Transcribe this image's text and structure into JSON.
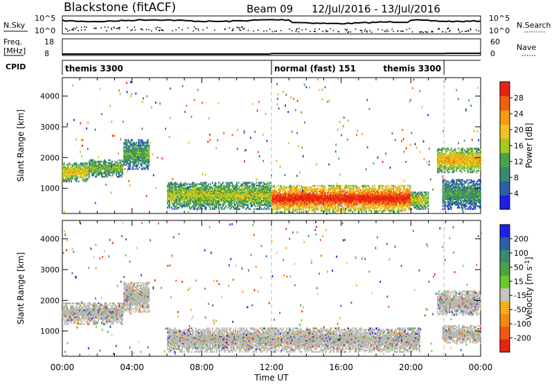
{
  "header": {
    "station": "Blackstone (fitACF)",
    "beam": "Beam 09",
    "date_range": "12/Jul/2016 - 13/Jul/2016"
  },
  "noise_panel": {
    "left_label": "N.Sky",
    "right_label": "N.Search",
    "left_ticks": [
      "10^5",
      "10^0"
    ],
    "right_ticks": [
      "10^5",
      "10^0"
    ]
  },
  "freq_panel": {
    "left_label_line1": "Freq.",
    "left_label_line2": "[MHz]",
    "right_label": "Nave",
    "left_ticks": [
      "18",
      "8"
    ],
    "right_ticks": [
      "60",
      "0"
    ],
    "freq_series": [
      {
        "t": 0,
        "f": 8.0
      },
      {
        "t": 11.9,
        "f": 8.0
      },
      {
        "t": 12.0,
        "f": 8.3
      },
      {
        "t": 21.9,
        "f": 8.3
      },
      {
        "t": 22.0,
        "f": 8.5
      },
      {
        "t": 24.0,
        "f": 8.5
      }
    ]
  },
  "cpid_panel": {
    "label": "CPID",
    "segments": [
      {
        "name": "themis 3300",
        "start": 0,
        "end": 12
      },
      {
        "name": "normal (fast) 151",
        "start": 12,
        "end": 21.9
      },
      {
        "name": "themis 3300",
        "start": 21.9,
        "end": 24
      }
    ]
  },
  "colors": {
    "power": [
      "#1f1fe8",
      "#2c5fa8",
      "#3a8a6f",
      "#4ba24a",
      "#a8c81e",
      "#f0c21a",
      "#f59a12",
      "#f06010",
      "#e82410"
    ],
    "velocity": [
      "#1f1fe8",
      "#2c5fa8",
      "#3a8a6f",
      "#4ba24a",
      "#6ec82a",
      "#c4c4c0",
      "#f5b018",
      "#f58a12",
      "#f05a10",
      "#e82410"
    ],
    "ground_scatter": "#b8b8b4"
  },
  "chart_data": [
    {
      "type": "heatmap",
      "name": "power",
      "xlabel": "Time UT",
      "ylabel": "Slant Range [km]",
      "xlim": [
        0,
        24
      ],
      "ylim": [
        180,
        4600
      ],
      "xticks": [
        "00:00",
        "04:00",
        "08:00",
        "12:00",
        "16:00",
        "20:00",
        "00:00"
      ],
      "yticks": [
        1000,
        2000,
        3000,
        4000
      ],
      "colorbar": {
        "label": "Power [dB]",
        "ticks": [
          4,
          8,
          12,
          16,
          20,
          24,
          28
        ],
        "range": [
          0,
          30
        ]
      },
      "bands": [
        {
          "t0": 0.0,
          "t1": 1.5,
          "r0": 1200,
          "r1": 1850,
          "level": 0.55
        },
        {
          "t0": 1.5,
          "t1": 3.5,
          "r0": 1350,
          "r1": 1950,
          "level": 0.4
        },
        {
          "t0": 3.5,
          "t1": 5.0,
          "r0": 1600,
          "r1": 2600,
          "level": 0.35
        },
        {
          "t0": 6.0,
          "t1": 12.0,
          "r0": 300,
          "r1": 1200,
          "level": 0.45
        },
        {
          "t0": 12.0,
          "t1": 20.0,
          "r0": 200,
          "r1": 1100,
          "level": 0.85
        },
        {
          "t0": 20.0,
          "t1": 21.0,
          "r0": 300,
          "r1": 900,
          "level": 0.5
        },
        {
          "t0": 21.5,
          "t1": 24.0,
          "r0": 1500,
          "r1": 2300,
          "level": 0.6
        },
        {
          "t0": 21.8,
          "t1": 24.0,
          "r0": 300,
          "r1": 1300,
          "level": 0.3
        }
      ]
    },
    {
      "type": "heatmap",
      "name": "velocity",
      "xlabel": "Time UT",
      "ylabel": "Slant Range [km]",
      "xlim": [
        0,
        24
      ],
      "ylim": [
        180,
        4600
      ],
      "xticks": [
        "00:00",
        "04:00",
        "08:00",
        "12:00",
        "16:00",
        "20:00",
        "00:00"
      ],
      "yticks": [
        1000,
        2000,
        3000,
        4000
      ],
      "colorbar": {
        "label": "Velocity [m s^-1]",
        "ticks": [
          200,
          100,
          50,
          15,
          -15,
          -50,
          -100,
          -200
        ]
      },
      "bands": [
        {
          "t0": 0.0,
          "t1": 3.5,
          "r0": 1200,
          "r1": 1900,
          "level": 0.5
        },
        {
          "t0": 3.5,
          "t1": 5.0,
          "r0": 1600,
          "r1": 2600,
          "level": 0.5
        },
        {
          "t0": 6.0,
          "t1": 20.5,
          "r0": 300,
          "r1": 1100,
          "level": 0.5
        },
        {
          "t0": 21.5,
          "t1": 24.0,
          "r0": 1500,
          "r1": 2300,
          "level": 0.5
        },
        {
          "t0": 21.8,
          "t1": 24.0,
          "r0": 600,
          "r1": 1200,
          "level": 0.5
        }
      ]
    }
  ]
}
